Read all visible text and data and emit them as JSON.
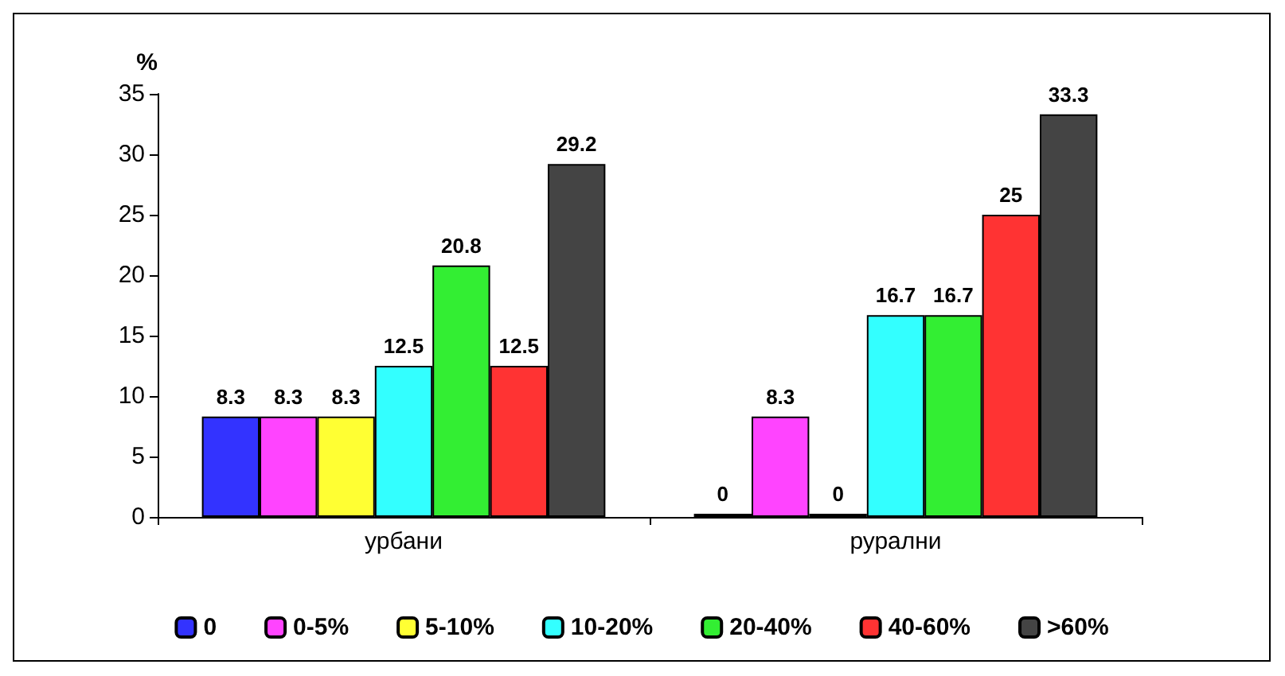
{
  "chart_data": {
    "type": "bar",
    "ylabel": "%",
    "categories": [
      "урбани",
      "рурални"
    ],
    "series": [
      {
        "name": "0",
        "color": "#3333ff",
        "values": [
          8.3,
          0
        ]
      },
      {
        "name": "0-5%",
        "color": "#ff44ff",
        "values": [
          8.3,
          8.3
        ]
      },
      {
        "name": "5-10%",
        "color": "#ffff33",
        "values": [
          8.3,
          0
        ]
      },
      {
        "name": "10-20%",
        "color": "#33ffff",
        "values": [
          12.5,
          16.7
        ]
      },
      {
        "name": "20-40%",
        "color": "#33ee33",
        "values": [
          20.8,
          16.7
        ]
      },
      {
        "name": "40-60%",
        "color": "#ff3333",
        "values": [
          12.5,
          25
        ]
      },
      {
        "name": ">60%",
        "color": "#444444",
        "values": [
          29.2,
          33.3
        ]
      }
    ],
    "ylim": [
      0,
      35
    ],
    "yticks": [
      0,
      5,
      10,
      15,
      20,
      25,
      30,
      35
    ],
    "grid": false,
    "legend": "bottom",
    "data_labels": true
  }
}
